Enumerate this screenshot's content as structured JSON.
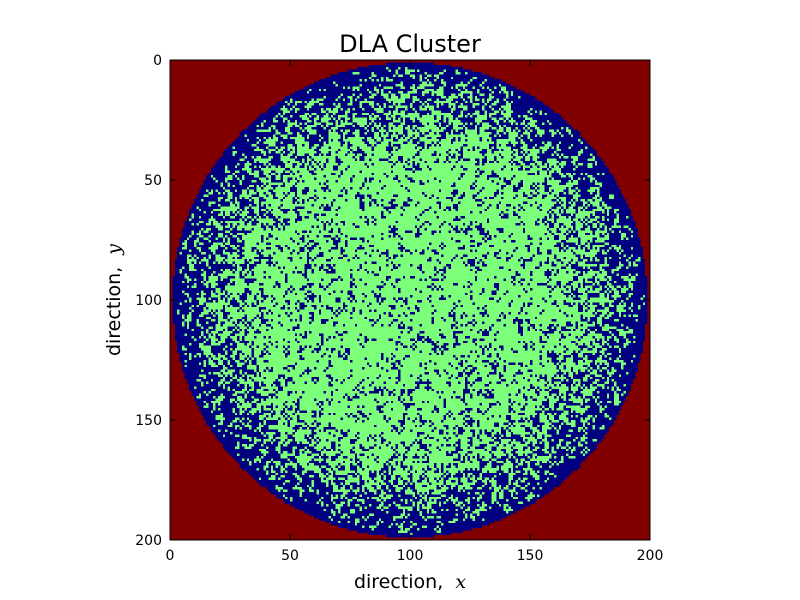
{
  "chart_data": {
    "type": "heatmap",
    "title": "DLA Cluster",
    "xlabel": "direction,",
    "xlabel_var": "x",
    "ylabel": "direction,",
    "ylabel_var": "y",
    "xlim": [
      0,
      200
    ],
    "ylim": [
      200,
      0
    ],
    "x_ticks": [
      "0",
      "50",
      "100",
      "150",
      "200"
    ],
    "y_ticks": [
      "0",
      "50",
      "100",
      "150",
      "200"
    ],
    "grid_size": 200,
    "cluster_center": [
      100,
      100
    ],
    "cluster_radius": 99,
    "colors": {
      "background": "#800000",
      "empty_interior": "#000080",
      "cluster": "#7cff79"
    }
  }
}
